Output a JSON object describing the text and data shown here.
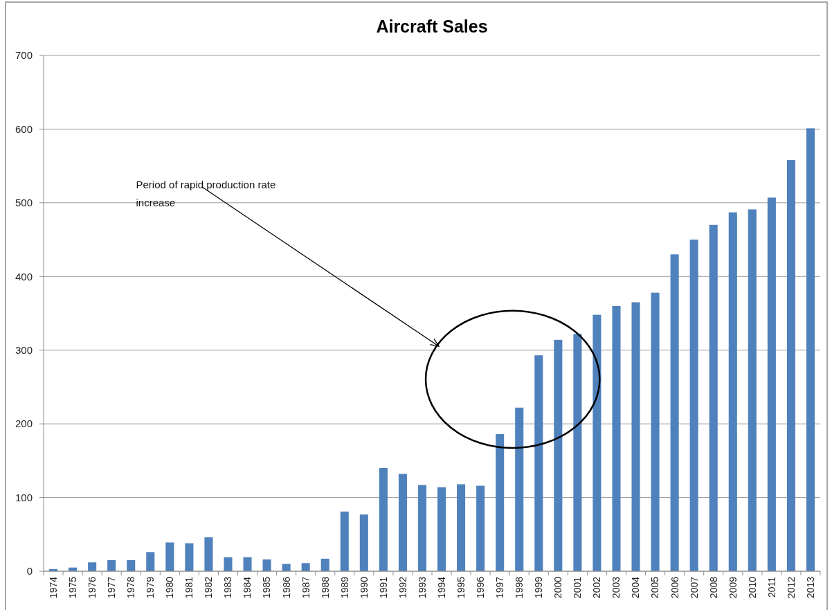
{
  "chart_data": {
    "type": "bar",
    "title": "Aircraft Sales",
    "categories": [
      "1974",
      "1975",
      "1976",
      "1977",
      "1978",
      "1979",
      "1980",
      "1981",
      "1982",
      "1983",
      "1984",
      "1985",
      "1986",
      "1987",
      "1988",
      "1989",
      "1990",
      "1991",
      "1992",
      "1993",
      "1994",
      "1995",
      "1996",
      "1997",
      "1998",
      "1999",
      "2000",
      "2001",
      "2002",
      "2003",
      "2004",
      "2005",
      "2006",
      "2007",
      "2008",
      "2009",
      "2010",
      "2011",
      "2012",
      "2013"
    ],
    "values": [
      3,
      5,
      12,
      15,
      15,
      26,
      39,
      38,
      46,
      19,
      19,
      16,
      10,
      11,
      17,
      81,
      77,
      140,
      132,
      117,
      114,
      118,
      116,
      186,
      222,
      293,
      314,
      322,
      348,
      360,
      365,
      378,
      430,
      450,
      470,
      487,
      491,
      507,
      558,
      601
    ],
    "color": "#4f81bd",
    "ylim": [
      0,
      700
    ],
    "yticks": [
      0,
      100,
      200,
      300,
      400,
      500,
      600,
      700
    ],
    "grid": "y",
    "annotations": [
      "Period of rapid production rate increase"
    ]
  }
}
